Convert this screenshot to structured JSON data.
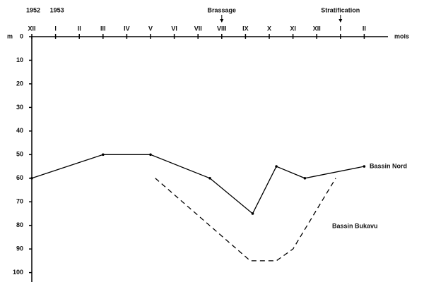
{
  "chart_data": {
    "type": "line",
    "ylabel": "m",
    "xlabel": "mois",
    "xlim": [
      0,
      15
    ],
    "ylim": [
      0,
      104
    ],
    "y_inverted": true,
    "xticks": [
      {
        "value": 0,
        "label": "XII"
      },
      {
        "value": 1,
        "label": "I"
      },
      {
        "value": 2,
        "label": "II"
      },
      {
        "value": 3,
        "label": "III"
      },
      {
        "value": 4,
        "label": "IV"
      },
      {
        "value": 5,
        "label": "V"
      },
      {
        "value": 6,
        "label": "VI"
      },
      {
        "value": 7,
        "label": "VII"
      },
      {
        "value": 8,
        "label": "VIII"
      },
      {
        "value": 9,
        "label": "IX"
      },
      {
        "value": 10,
        "label": "X"
      },
      {
        "value": 11,
        "label": "XI"
      },
      {
        "value": 12,
        "label": "XII"
      },
      {
        "value": 13,
        "label": "I"
      },
      {
        "value": 14,
        "label": "II"
      }
    ],
    "yticks": [
      0,
      10,
      20,
      30,
      40,
      50,
      60,
      70,
      80,
      90,
      100
    ],
    "annotations": [
      {
        "text": "1952",
        "x": 0
      },
      {
        "text": "1953",
        "x": 1
      },
      {
        "text": "Brassage",
        "x": 8,
        "arrow": true
      },
      {
        "text": "Stratification",
        "x": 13,
        "arrow": true
      }
    ],
    "series": [
      {
        "name": "Bassin Nord",
        "color": "#000000",
        "linestyle": "solid",
        "markers": true,
        "x": [
          0,
          3,
          5,
          7.5,
          9.3,
          10.3,
          11.5,
          14
        ],
        "values": [
          60,
          50,
          50,
          60,
          75,
          55,
          60,
          55
        ]
      },
      {
        "name": "Bassin Bukavu",
        "color": "#000000",
        "linestyle": "dashed",
        "markers": false,
        "x": [
          5.2,
          9.2,
          10.3,
          11,
          12.8
        ],
        "values": [
          60,
          95,
          95,
          90,
          60
        ]
      }
    ]
  }
}
